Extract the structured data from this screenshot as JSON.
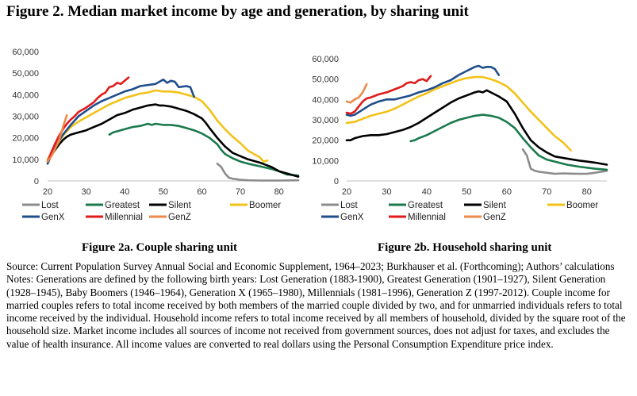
{
  "figure_title": "Figure 2. Median market income by age and generation, by sharing unit",
  "source_text": "Source: Current Population Survey Annual Social and Economic Supplement, 1964–2023; Burkhauser et al. (Forthcoming); Authors’ calculations",
  "notes_text": "Notes: Generations are defined by the following birth years: Lost Generation (1883-1900), Greatest Generation (1901–1927), Silent Generation (1928–1945), Baby Boomers (1946–1964), Generation X (1965–1980), Millennials (1981–1996), Generation Z (1997-2012). Couple income for married couples refers to total income received by both members of the married couple divided by two, and for unmarried individuals refers to total income received by the individual. Household income refers to total income received by all members of household, divided by the square root of the household size. Market income includes all sources of income not received from government sources, does not adjust for taxes, and excludes the value of health insurance. All income values are converted to real dollars using the Personal Consumption Expenditure price index.",
  "colors": {
    "Lost": "#8c8c8c",
    "Greatest": "#1a7a4c",
    "Silent": "#000000",
    "Boomer": "#f2c218",
    "GenX": "#1f4e8c",
    "Millennial": "#e11a1a",
    "GenZ": "#ec8a4a"
  },
  "chart_data": [
    {
      "type": "line",
      "caption": "Figure 2a. Couple sharing unit",
      "xlim": [
        20,
        85
      ],
      "ylim": [
        0,
        60000
      ],
      "xticks": [
        20,
        30,
        40,
        50,
        60,
        70,
        80
      ],
      "xtick_labels": [
        "20",
        "30",
        "40",
        "50",
        "60",
        "70",
        "80"
      ],
      "yticks": [
        0,
        10000,
        20000,
        30000,
        40000,
        50000,
        60000
      ],
      "ytick_labels": [
        "0",
        "10,000",
        "20,000",
        "30,000",
        "40,000",
        "50,000",
        "60,000"
      ],
      "legend": [
        "Lost",
        "Greatest",
        "Silent",
        "Boomer",
        "GenX",
        "Millennial",
        "GenZ"
      ],
      "series": [
        {
          "name": "Lost",
          "x": [
            64,
            65,
            66,
            67,
            68,
            69,
            70,
            72,
            75,
            80,
            85
          ],
          "y": [
            8000,
            6500,
            3500,
            1500,
            1000,
            800,
            500,
            300,
            200,
            200,
            300
          ]
        },
        {
          "name": "Greatest",
          "x": [
            36,
            37,
            38,
            40,
            42,
            44,
            46,
            47,
            48,
            50,
            52,
            54,
            56,
            58,
            60,
            62,
            64,
            65,
            66,
            68,
            70,
            72,
            75,
            78,
            80,
            82,
            85
          ],
          "y": [
            21500,
            22500,
            23000,
            24000,
            25000,
            25500,
            26500,
            26000,
            26500,
            26000,
            26000,
            25500,
            24500,
            23500,
            22000,
            20000,
            17000,
            14500,
            12500,
            10500,
            9000,
            8000,
            6800,
            5600,
            4500,
            3000,
            2500
          ]
        },
        {
          "name": "Silent",
          "x": [
            20,
            21,
            22,
            23,
            24,
            25,
            26,
            28,
            30,
            32,
            34,
            36,
            38,
            40,
            42,
            44,
            46,
            48,
            49,
            50,
            52,
            54,
            56,
            58,
            60,
            61,
            62,
            64,
            66,
            68,
            70,
            72,
            75,
            78,
            80,
            82,
            85
          ],
          "y": [
            9000,
            12000,
            14500,
            17000,
            19000,
            20500,
            21500,
            22500,
            23500,
            25000,
            26500,
            28500,
            30500,
            31500,
            33000,
            34000,
            35000,
            35500,
            35000,
            35000,
            34500,
            33500,
            32500,
            31000,
            29000,
            27000,
            24500,
            20000,
            16000,
            13000,
            11500,
            10000,
            8500,
            6500,
            4500,
            3500,
            2000
          ]
        },
        {
          "name": "Boomer",
          "x": [
            20,
            22,
            24,
            26,
            28,
            30,
            32,
            34,
            36,
            38,
            40,
            42,
            44,
            46,
            48,
            50,
            52,
            54,
            56,
            58,
            60,
            62,
            64,
            66,
            68,
            70,
            72,
            74,
            75,
            76,
            77
          ],
          "y": [
            10000,
            15500,
            21000,
            25000,
            27500,
            29500,
            31500,
            33500,
            35500,
            37000,
            38500,
            39500,
            40500,
            41000,
            42000,
            41500,
            41500,
            41000,
            40000,
            39000,
            37000,
            33000,
            28000,
            24000,
            20500,
            17500,
            14000,
            12000,
            11000,
            9000,
            9500
          ]
        },
        {
          "name": "GenX",
          "x": [
            20,
            21,
            22,
            24,
            26,
            28,
            30,
            32,
            34,
            36,
            38,
            40,
            42,
            44,
            46,
            48,
            49,
            50,
            51,
            52,
            53,
            54,
            56,
            57,
            58
          ],
          "y": [
            8000,
            12000,
            16000,
            21500,
            26000,
            30000,
            32500,
            35000,
            37000,
            38500,
            40000,
            41500,
            42500,
            44000,
            44500,
            45000,
            46000,
            47000,
            45500,
            46500,
            46000,
            43500,
            44000,
            43500,
            39000
          ]
        },
        {
          "name": "Millennial",
          "x": [
            20,
            21,
            22,
            23,
            24,
            25,
            26,
            27,
            28,
            30,
            32,
            33,
            34,
            35,
            36,
            37,
            38,
            39,
            40,
            41
          ],
          "y": [
            9000,
            13500,
            17500,
            21000,
            24000,
            26500,
            28500,
            30000,
            32000,
            34000,
            36500,
            38500,
            40000,
            41000,
            43500,
            44000,
            45500,
            45000,
            46500,
            48000
          ]
        },
        {
          "name": "GenZ",
          "x": [
            20,
            21,
            22,
            23,
            24,
            25
          ],
          "y": [
            9000,
            11500,
            15000,
            19000,
            25000,
            30500
          ]
        }
      ]
    },
    {
      "type": "line",
      "caption": "Figure 2b. Household sharing unit",
      "xlim": [
        20,
        85
      ],
      "ylim": [
        0,
        60000
      ],
      "xticks": [
        20,
        30,
        40,
        50,
        60,
        70,
        80
      ],
      "xtick_labels": [
        "20",
        "30",
        "40",
        "50",
        "60",
        "70",
        "80"
      ],
      "yticks": [
        0,
        10000,
        20000,
        30000,
        40000,
        50000,
        60000
      ],
      "ytick_labels": [
        "0",
        "10,000",
        "20,000",
        "30,000",
        "40,000",
        "50,000",
        "60,000"
      ],
      "legend": [
        "Lost",
        "Greatest",
        "Silent",
        "Boomer",
        "GenX",
        "Millennial",
        "GenZ"
      ],
      "series": [
        {
          "name": "Lost",
          "x": [
            64,
            65,
            66,
            67,
            68,
            70,
            72,
            74,
            76,
            78,
            80,
            82,
            85
          ],
          "y": [
            15500,
            12500,
            6000,
            5000,
            4500,
            4000,
            3500,
            3700,
            3600,
            3500,
            3500,
            4000,
            5000
          ]
        },
        {
          "name": "Greatest",
          "x": [
            36,
            37,
            38,
            40,
            42,
            44,
            46,
            48,
            50,
            52,
            54,
            56,
            58,
            60,
            62,
            64,
            66,
            68,
            70,
            72,
            75,
            78,
            80,
            82,
            85
          ],
          "y": [
            19500,
            20000,
            21000,
            22500,
            24500,
            26500,
            28500,
            30000,
            31000,
            32000,
            32500,
            32000,
            31000,
            29000,
            26000,
            21000,
            16500,
            12500,
            10500,
            9500,
            8000,
            7000,
            6500,
            6000,
            5500
          ]
        },
        {
          "name": "Silent",
          "x": [
            20,
            21,
            22,
            24,
            26,
            28,
            30,
            32,
            34,
            36,
            38,
            40,
            42,
            44,
            46,
            48,
            50,
            52,
            53,
            54,
            55,
            56,
            58,
            60,
            62,
            64,
            66,
            68,
            70,
            72,
            75,
            78,
            80,
            82,
            85
          ],
          "y": [
            20000,
            20000,
            21000,
            22000,
            22500,
            22500,
            23000,
            24000,
            25000,
            26500,
            28500,
            31000,
            33500,
            36000,
            38500,
            40500,
            42000,
            43500,
            44000,
            43500,
            44500,
            43500,
            41500,
            39000,
            33000,
            26000,
            20000,
            16500,
            14000,
            12000,
            11000,
            10000,
            9500,
            9000,
            8000
          ]
        },
        {
          "name": "Boomer",
          "x": [
            20,
            22,
            24,
            26,
            28,
            30,
            32,
            34,
            36,
            38,
            40,
            42,
            44,
            46,
            48,
            50,
            52,
            54,
            56,
            58,
            60,
            62,
            64,
            66,
            68,
            70,
            72,
            74,
            76
          ],
          "y": [
            28500,
            29000,
            30500,
            32000,
            33000,
            34000,
            35500,
            37500,
            39500,
            41500,
            43000,
            45000,
            46500,
            48000,
            49500,
            50500,
            51000,
            51000,
            50000,
            48500,
            46500,
            43000,
            38500,
            34000,
            30000,
            26000,
            22000,
            19000,
            15000
          ]
        },
        {
          "name": "GenX",
          "x": [
            20,
            21,
            22,
            24,
            26,
            28,
            30,
            32,
            34,
            36,
            38,
            40,
            42,
            44,
            46,
            48,
            50,
            52,
            53,
            54,
            55,
            56,
            57,
            58
          ],
          "y": [
            32500,
            32000,
            32500,
            35000,
            37500,
            39000,
            40000,
            40000,
            41000,
            42000,
            43500,
            44500,
            46000,
            48000,
            49500,
            52000,
            54000,
            56000,
            56500,
            55500,
            56000,
            56000,
            55000,
            52000
          ]
        },
        {
          "name": "Millennial",
          "x": [
            20,
            21,
            22,
            23,
            24,
            25,
            26,
            28,
            30,
            32,
            34,
            35,
            36,
            37,
            38,
            39,
            40,
            41
          ],
          "y": [
            33500,
            33000,
            34000,
            36500,
            39000,
            40500,
            41000,
            42500,
            43500,
            45000,
            46500,
            48000,
            48500,
            48000,
            49500,
            50000,
            49000,
            51500
          ]
        },
        {
          "name": "GenZ",
          "x": [
            20,
            21,
            22,
            23,
            24,
            25
          ],
          "y": [
            39000,
            38500,
            40000,
            41000,
            43500,
            47500
          ]
        }
      ]
    }
  ]
}
